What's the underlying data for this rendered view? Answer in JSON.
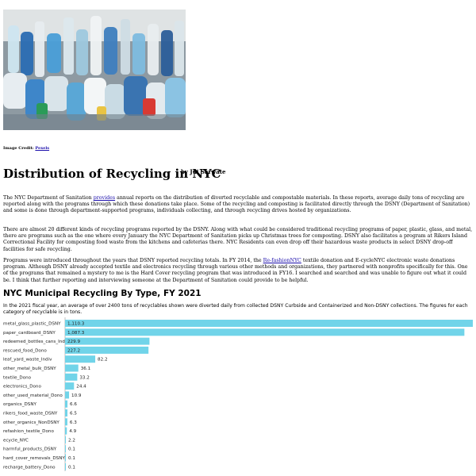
{
  "image_credit": {
    "label": "Image Credit:",
    "link": "Pexels"
  },
  "article": {
    "title": "Distribution of Recycling in NYC",
    "byline": "by Jui Sarwate",
    "p1": {
      "pre": "The NYC Department of Sanitation ",
      "link": "provides",
      "post": " annual reports on the distribution of diverted recyclable and compostable materials. In these reports, average daily tons of recycling are reported along with the programs through which these donations take place. Some of the recycling and composting is facilitated directly through the DSNY (Department of Sanitation) and some is done through department-supported programs, individuals collecting, and through recycling drives hosted by organizations."
    },
    "p2": "There are almost 20 different kinds of recycling programs reported by the DSNY. Along with what could be considered traditional recycling programs of paper, plastic, glass, and metal, there are programs such as the one where every January the NYC Department of Sanitation picks up Christmas trees for composting. DSNY also facilitates a program at Rikers Island Correctional Facility for composting food waste from the kitchens and cafeterias there. NYC Residents can even drop off their hazardous waste products in select DSNY drop-off facilities for safe recycling.",
    "p3": {
      "pre": "Programs were introduced throughout the years that DSNY reported recycling totals. In FY 2014, the ",
      "link": "Re-fashionNYC",
      "post": " textile donation and E-cycleNYC electronic waste donations program. Although DSNY already accepted textile and electronics recycling through various other methods and organizations, they partnered with nonprofits specifically for this. One of the programs that remained a mystery to me is the Hard Cover recycling program that was introduced in FY16. I searched and searched and was unable to figure out what it could be. I think that further reporting and interviewing someone at the Department of Sanitation could provide to be helpful."
    }
  },
  "section": {
    "title": "NYC Municipal Recycling By Type, FY 2021",
    "description": "In the 2021 fiscal year, an average of over 2400 tons of recyclables shown were diverted daily from collected DSNY Curbside and Containerized and Non-DSNY collections. The figures for each category of recyclable is in tons."
  },
  "colors": {
    "bar": "#71d4e9",
    "link": "#1a0dab"
  },
  "chart_data": {
    "type": "bar",
    "orientation": "horizontal",
    "title": "",
    "xlabel": "",
    "ylabel": "",
    "categories": [
      "metal_glass_plastic_DSNY",
      "paper_cardboard_DSNY",
      "redeemed_bottles_cans_Indiv",
      "rescued_food_Dono",
      "leaf_yard_waste_Indiv",
      "other_metal_bulk_DSNY",
      "textile_Dono",
      "electronics_Dono",
      "other_used_material_Dono",
      "organics_DSNY",
      "rikers_food_waste_DSNY",
      "other_organics_NonDSNY",
      "refashion_textile_Dono",
      "ecycle_NYC",
      "harmful_products_DSNY",
      "hard_cover_removals_DSNY",
      "recharge_battery_Dono"
    ],
    "values": [
      1110.3,
      1087.3,
      229.9,
      227.2,
      82.2,
      36.1,
      33.2,
      24.4,
      10.9,
      6.6,
      6.5,
      6.3,
      4.9,
      2.2,
      0.1,
      0.1,
      0.1
    ],
    "value_labels": [
      "1,110.3",
      "1,087.3",
      "229.9",
      "227.2",
      "82.2",
      "36.1",
      "33.2",
      "24.4",
      "10.9",
      "6.6",
      "6.5",
      "6.3",
      "4.9",
      "2.2",
      "0.1",
      "0.1",
      "0.1"
    ],
    "xlim": [
      0,
      1110.3
    ]
  }
}
